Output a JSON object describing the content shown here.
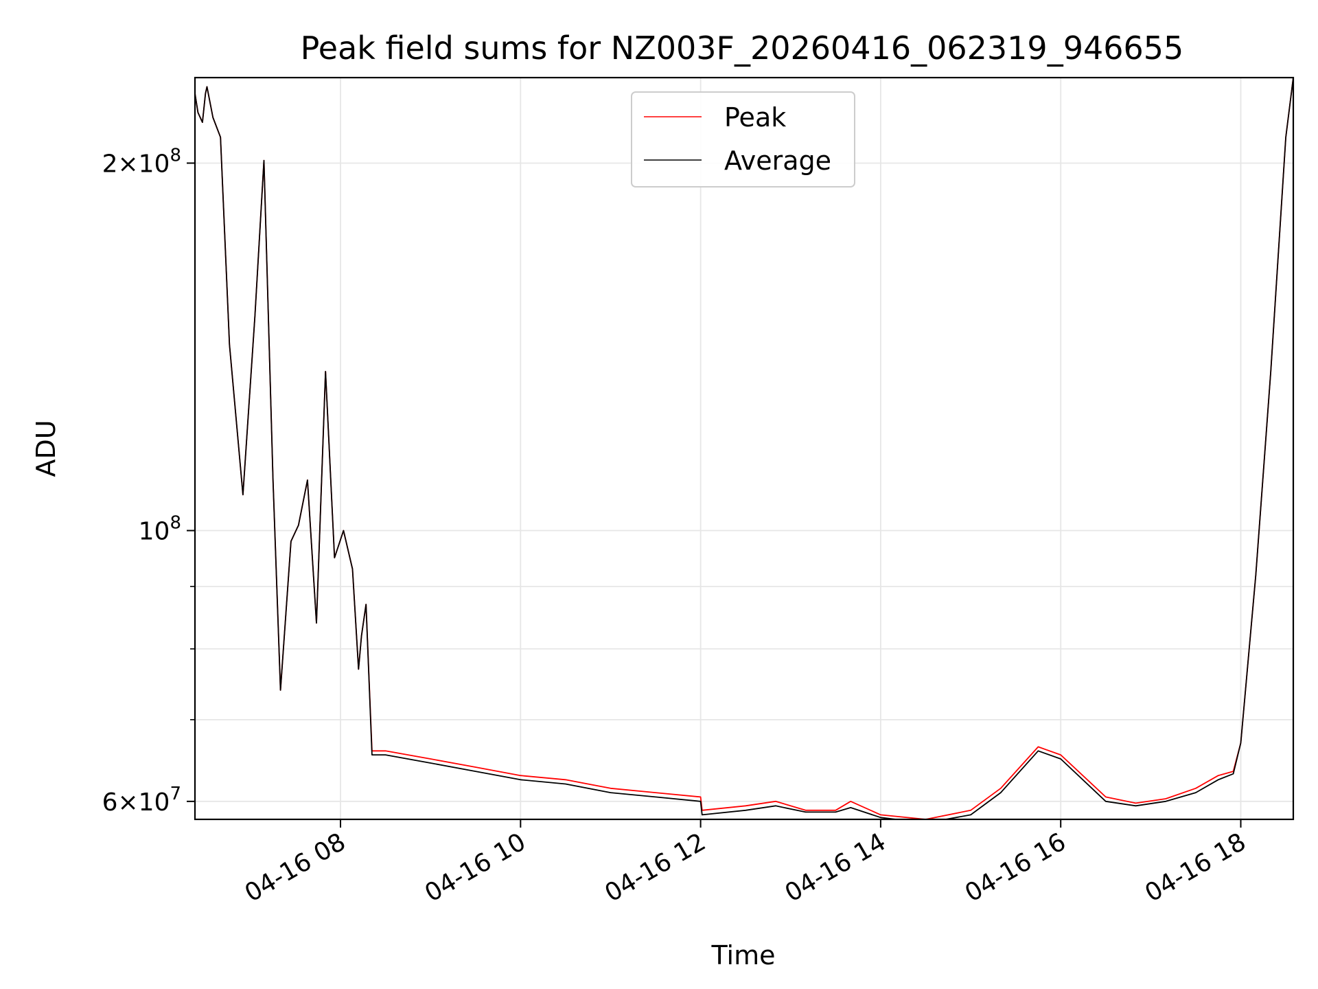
{
  "chart_data": {
    "type": "line",
    "title": "Peak field sums for NZ003F_20260416_062319_946655",
    "xlabel": "Time",
    "ylabel": "ADU",
    "x_scale": "time",
    "y_scale": "log",
    "xlim": [
      "2026-04-16 06:23",
      "2026-04-16 18:35"
    ],
    "ylim": [
      58000000,
      235000000
    ],
    "grid": true,
    "legend": {
      "position": "upper center",
      "entries": [
        "Peak",
        "Average"
      ]
    },
    "x_ticks": [
      {
        "value": "2026-04-16 08:00",
        "label": "04-16 08"
      },
      {
        "value": "2026-04-16 10:00",
        "label": "04-16 10"
      },
      {
        "value": "2026-04-16 12:00",
        "label": "04-16 12"
      },
      {
        "value": "2026-04-16 14:00",
        "label": "04-16 14"
      },
      {
        "value": "2026-04-16 16:00",
        "label": "04-16 16"
      },
      {
        "value": "2026-04-16 18:00",
        "label": "04-16 18"
      }
    ],
    "y_major_ticks": [
      {
        "value": 60000000,
        "mantissa": "6",
        "exponent": "7"
      },
      {
        "value": 100000000,
        "mantissa": "",
        "exponent": "8"
      },
      {
        "value": 200000000,
        "mantissa": "2",
        "exponent": "8"
      }
    ],
    "y_minor_ticks": [
      70000000,
      80000000,
      90000000
    ],
    "x": [
      "06:23",
      "06:25",
      "06:28",
      "06:30",
      "06:31",
      "06:35",
      "06:40",
      "06:46",
      "06:55",
      "07:03",
      "07:09",
      "07:15",
      "07:20",
      "07:27",
      "07:32",
      "07:38",
      "07:44",
      "07:50",
      "07:56",
      "08:02",
      "08:08",
      "08:12",
      "08:14",
      "08:17",
      "08:21",
      "08:30",
      "09:00",
      "09:30",
      "10:00",
      "10:30",
      "11:00",
      "11:30",
      "12:00",
      "12:01",
      "12:30",
      "12:50",
      "13:10",
      "13:30",
      "13:40",
      "14:00",
      "14:30",
      "15:00",
      "15:20",
      "15:45",
      "16:00",
      "16:30",
      "16:50",
      "17:10",
      "17:30",
      "17:45",
      "17:55",
      "18:00",
      "18:10",
      "18:20",
      "18:30",
      "18:35"
    ],
    "series": [
      {
        "name": "Peak",
        "color": "#ff0000",
        "values": [
          228000000,
          220000000,
          216000000,
          228000000,
          231000000,
          218000000,
          210000000,
          142000000,
          107000000,
          150000000,
          201000000,
          110000000,
          74000000,
          98000000,
          101000000,
          110000000,
          84000000,
          135000000,
          95000000,
          100000000,
          93000000,
          77000000,
          82000000,
          87000000,
          66000000,
          66000000,
          65000000,
          64000000,
          63000000,
          62500000,
          61500000,
          61000000,
          60500000,
          59000000,
          59500000,
          60000000,
          59000000,
          59000000,
          60000000,
          58500000,
          58000000,
          59000000,
          61500000,
          66500000,
          65500000,
          60500000,
          59800000,
          60300000,
          61500000,
          63000000,
          63500000,
          67000000,
          92000000,
          135000000,
          210000000,
          235000000
        ]
      },
      {
        "name": "Average",
        "color": "#000000",
        "values": [
          228000000,
          220000000,
          216000000,
          228000000,
          231000000,
          218000000,
          210000000,
          142000000,
          107000000,
          150000000,
          201000000,
          110000000,
          74000000,
          98000000,
          101000000,
          110000000,
          84000000,
          135000000,
          95000000,
          100000000,
          93000000,
          77000000,
          82000000,
          87000000,
          65500000,
          65500000,
          64500000,
          63500000,
          62500000,
          62000000,
          61000000,
          60500000,
          60000000,
          58500000,
          59000000,
          59500000,
          58800000,
          58800000,
          59300000,
          58200000,
          57600000,
          58500000,
          61000000,
          66000000,
          65000000,
          60000000,
          59500000,
          60000000,
          61000000,
          62500000,
          63200000,
          67000000,
          92000000,
          135000000,
          210000000,
          235000000
        ]
      }
    ]
  }
}
